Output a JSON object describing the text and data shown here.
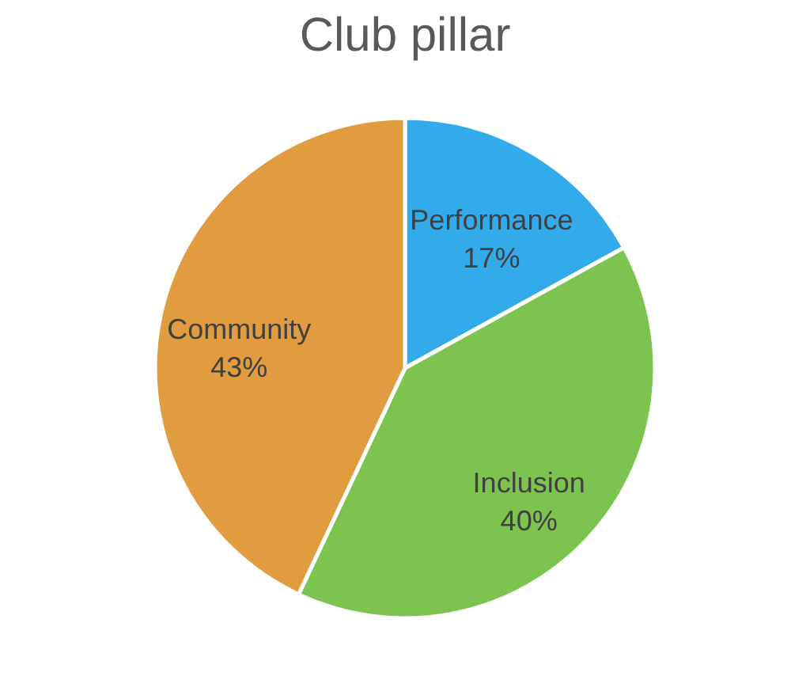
{
  "chart_data": {
    "type": "pie",
    "title": "Club pillar",
    "categories": [
      "Performance",
      "Inclusion",
      "Community"
    ],
    "values": [
      17,
      40,
      43
    ],
    "colors": [
      "#33aaea",
      "#7dc34f",
      "#e09c3f"
    ],
    "value_labels": [
      "17%",
      "40%",
      "43%"
    ],
    "legend": false
  }
}
